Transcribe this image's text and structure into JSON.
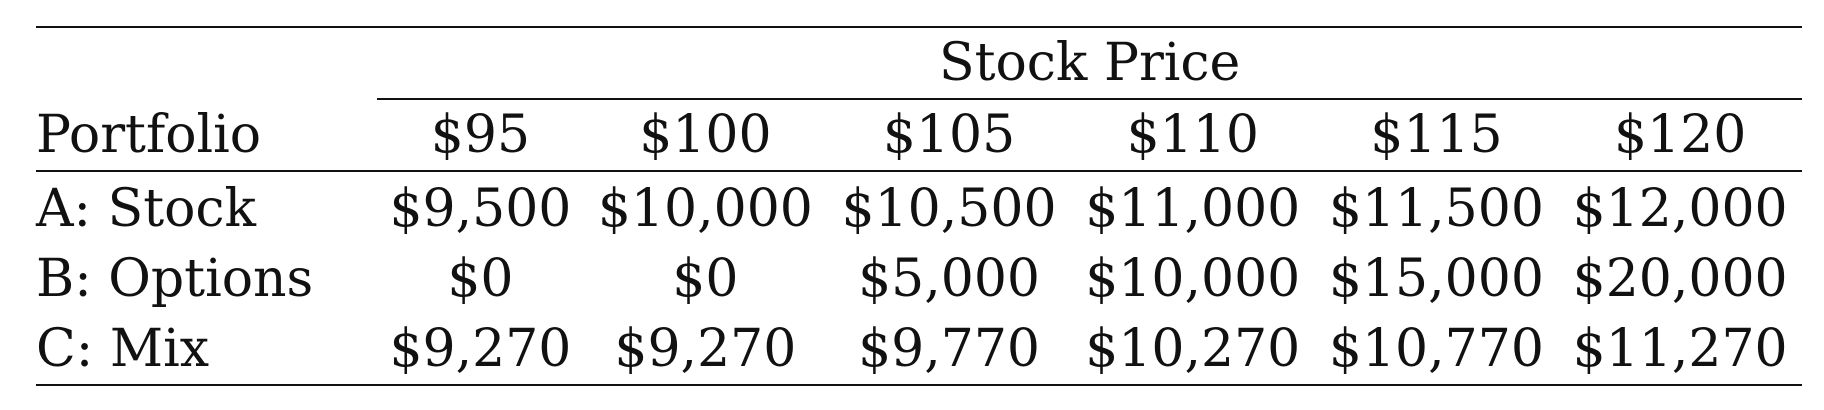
{
  "table": {
    "group_header": "Stock Price",
    "row_header": "Portfolio",
    "columns": [
      "$95",
      "$100",
      "$105",
      "$110",
      "$115",
      "$120"
    ],
    "rows": [
      {
        "label": "A: Stock",
        "values": [
          "$9,500",
          "$10,000",
          "$10,500",
          "$11,000",
          "$11,500",
          "$12,000"
        ]
      },
      {
        "label": "B: Options",
        "values": [
          "$0",
          "$0",
          "$5,000",
          "$10,000",
          "$15,000",
          "$20,000"
        ]
      },
      {
        "label": "C: Mix",
        "values": [
          "$9,270",
          "$9,270",
          "$9,770",
          "$10,270",
          "$10,770",
          "$11,270"
        ]
      }
    ]
  }
}
